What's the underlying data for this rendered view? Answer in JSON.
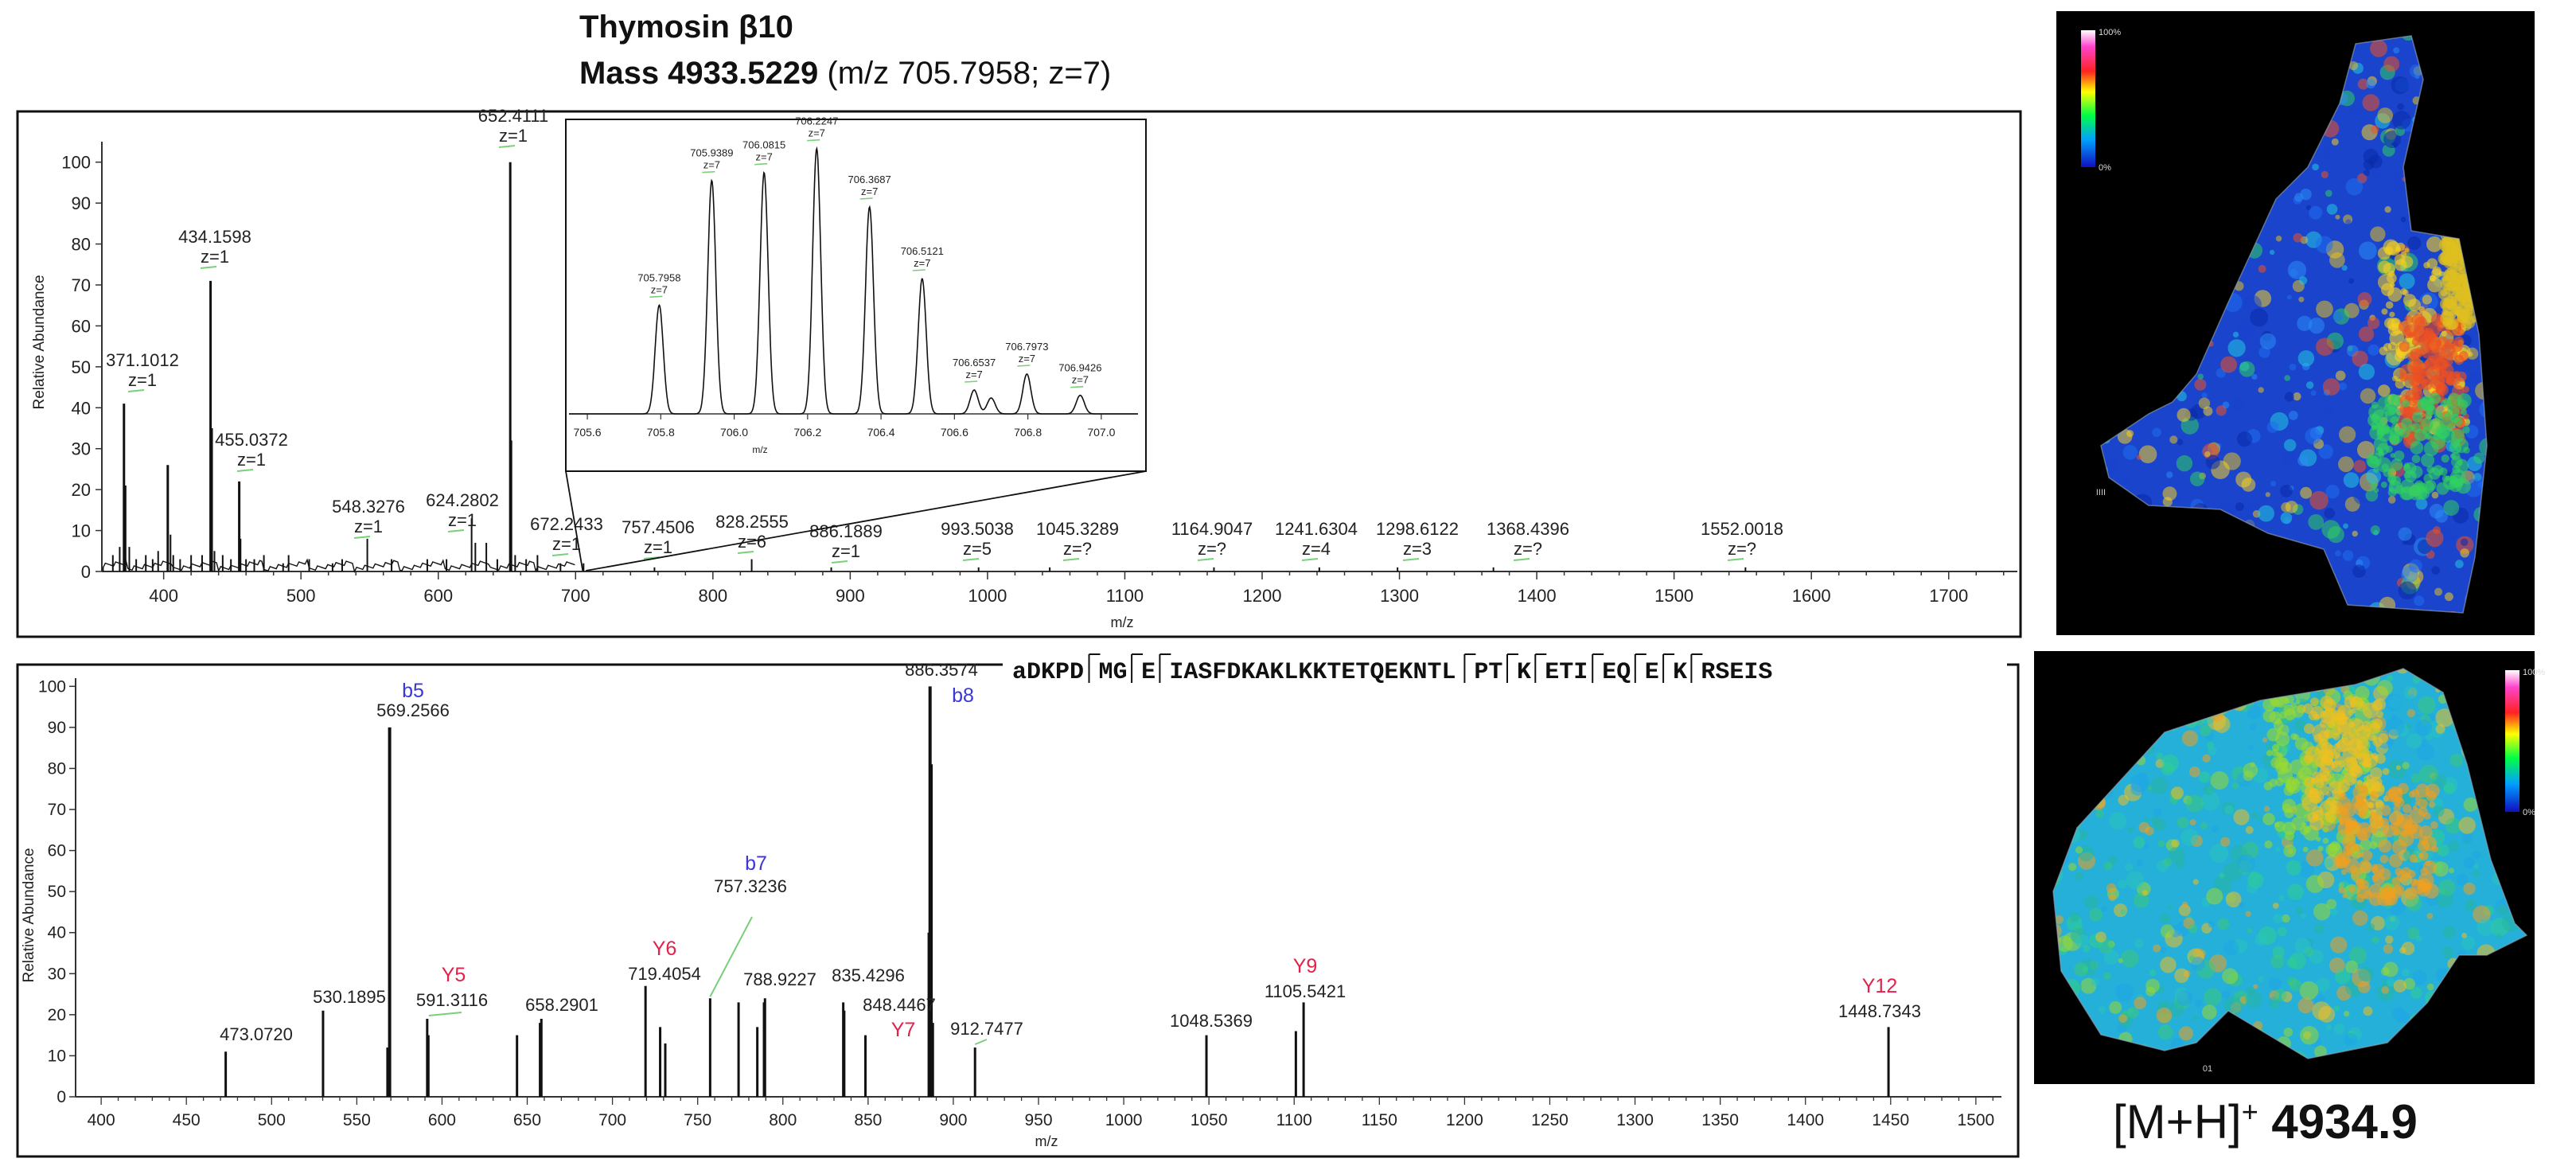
{
  "title": {
    "name": "Thymosin β10",
    "mass_label": "Mass 4933.5229",
    "mass_detail": "(m/z 705.7958; z=7)"
  },
  "sequence": [
    "aDKPD",
    "MG",
    "E",
    "IASFDKAKLKKTETQEKNTL",
    "PT",
    "K",
    "ETI",
    "EQ",
    "E",
    "K",
    "RSEIS"
  ],
  "images": {
    "top_scale_max": "100%",
    "top_scale_min": "0%",
    "top_corner": "IIII",
    "bottom_scale_max": "100%",
    "bottom_scale_min": "0%",
    "bottom_corner": "01",
    "label_main": "[M+H]",
    "label_sup": "+",
    "label_value": "4934.9"
  },
  "chart_data": [
    {
      "type": "line",
      "subtype": "mass-spectrum",
      "xlabel": "m/z",
      "ylabel": "Relative Abundance",
      "xlim": [
        355,
        1750
      ],
      "ylim": [
        0,
        105
      ],
      "xticks": [
        400,
        500,
        600,
        700,
        800,
        900,
        1000,
        1100,
        1200,
        1300,
        1400,
        1500,
        1600,
        1700
      ],
      "yticks": [
        0,
        10,
        20,
        30,
        40,
        50,
        60,
        70,
        80,
        90,
        100
      ],
      "peaks": [
        {
          "x": 363,
          "y": 4
        },
        {
          "x": 368,
          "y": 6
        },
        {
          "x": 371.1012,
          "y": 41
        },
        {
          "x": 372,
          "y": 21
        },
        {
          "x": 375,
          "y": 6
        },
        {
          "x": 380,
          "y": 3
        },
        {
          "x": 387,
          "y": 4
        },
        {
          "x": 392,
          "y": 3
        },
        {
          "x": 396,
          "y": 5
        },
        {
          "x": 403,
          "y": 26
        },
        {
          "x": 405,
          "y": 9
        },
        {
          "x": 407,
          "y": 4
        },
        {
          "x": 412,
          "y": 3
        },
        {
          "x": 420,
          "y": 4
        },
        {
          "x": 428,
          "y": 4
        },
        {
          "x": 434.1598,
          "y": 71
        },
        {
          "x": 435,
          "y": 35
        },
        {
          "x": 437,
          "y": 5
        },
        {
          "x": 443,
          "y": 4
        },
        {
          "x": 449,
          "y": 3
        },
        {
          "x": 455.0372,
          "y": 22
        },
        {
          "x": 456,
          "y": 8
        },
        {
          "x": 460,
          "y": 3
        },
        {
          "x": 466,
          "y": 3
        },
        {
          "x": 473,
          "y": 4
        },
        {
          "x": 487,
          "y": 2
        },
        {
          "x": 491,
          "y": 4
        },
        {
          "x": 506,
          "y": 3
        },
        {
          "x": 523,
          "y": 2
        },
        {
          "x": 530,
          "y": 3
        },
        {
          "x": 548.3276,
          "y": 8
        },
        {
          "x": 566,
          "y": 3
        },
        {
          "x": 592,
          "y": 3
        },
        {
          "x": 606,
          "y": 3
        },
        {
          "x": 624.2802,
          "y": 13
        },
        {
          "x": 627,
          "y": 7
        },
        {
          "x": 635,
          "y": 7
        },
        {
          "x": 643,
          "y": 3
        },
        {
          "x": 652.4111,
          "y": 100
        },
        {
          "x": 653,
          "y": 32
        },
        {
          "x": 656,
          "y": 4
        },
        {
          "x": 664,
          "y": 3
        },
        {
          "x": 672.2433,
          "y": 4
        },
        {
          "x": 689,
          "y": 2
        },
        {
          "x": 705.8,
          "y": 2
        },
        {
          "x": 757.4506,
          "y": 1
        },
        {
          "x": 828.2555,
          "y": 3
        },
        {
          "x": 886.1889,
          "y": 1
        },
        {
          "x": 993.5038,
          "y": 1
        },
        {
          "x": 1045.3289,
          "y": 1
        },
        {
          "x": 1164.9047,
          "y": 1
        },
        {
          "x": 1241.6304,
          "y": 1
        },
        {
          "x": 1298.6122,
          "y": 1
        },
        {
          "x": 1368.4396,
          "y": 1
        },
        {
          "x": 1552.0018,
          "y": 1
        }
      ],
      "labels": [
        {
          "x": 371.1012,
          "y": 41,
          "mz": "371.1012",
          "z": "z=1"
        },
        {
          "x": 434.1598,
          "y": 71,
          "mz": "434.1598",
          "z": "z=1"
        },
        {
          "x": 455.0372,
          "y": 22,
          "mz": "455.0372",
          "z": "z=1"
        },
        {
          "x": 548.3276,
          "y": 8,
          "mz": "548.3276",
          "z": "z=1"
        },
        {
          "x": 624.2802,
          "y": 13,
          "mz": "624.2802",
          "z": "z=1"
        },
        {
          "x": 652.4111,
          "y": 100,
          "mz": "652.4111",
          "z": "z=1"
        },
        {
          "x": 672.2433,
          "y": 4,
          "mz": "672.2433",
          "z": "z=1"
        },
        {
          "x": 757.4506,
          "y": 1,
          "mz": "757.4506",
          "z": "z=1"
        },
        {
          "x": 828.2555,
          "y": 3,
          "mz": "828.2555",
          "z": "z=6"
        },
        {
          "x": 886.1889,
          "y": 1,
          "mz": "886.1889",
          "z": "z=1"
        },
        {
          "x": 993.5038,
          "y": 1,
          "mz": "993.5038",
          "z": "z=5"
        },
        {
          "x": 1045.3289,
          "y": 1,
          "mz": "1045.3289",
          "z": "z=?"
        },
        {
          "x": 1164.9047,
          "y": 1,
          "mz": "1164.9047",
          "z": "z=?"
        },
        {
          "x": 1241.6304,
          "y": 1,
          "mz": "1241.6304",
          "z": "z=4"
        },
        {
          "x": 1298.6122,
          "y": 1,
          "mz": "1298.6122",
          "z": "z=3"
        },
        {
          "x": 1368.4396,
          "y": 1,
          "mz": "1368.4396",
          "z": "z=?"
        },
        {
          "x": 1552.0018,
          "y": 1,
          "mz": "1552.0018",
          "z": "z=?"
        }
      ]
    },
    {
      "type": "line",
      "subtype": "mass-spectrum-inset",
      "xlabel": "m/z",
      "xlim": [
        705.55,
        707.1
      ],
      "ylim": [
        0,
        105
      ],
      "xticks": [
        "705.6",
        "705.8",
        "706.0",
        "706.2",
        "706.4",
        "706.6",
        "706.8",
        "707.0"
      ],
      "peaks": [
        {
          "x": 705.7958,
          "y": 41,
          "mz": "705.7958",
          "z": "z=7"
        },
        {
          "x": 705.9389,
          "y": 88,
          "mz": "705.9389",
          "z": "z=7"
        },
        {
          "x": 706.0815,
          "y": 91,
          "mz": "706.0815",
          "z": "z=7"
        },
        {
          "x": 706.2247,
          "y": 100,
          "mz": "706.2247",
          "z": "z=7"
        },
        {
          "x": 706.3687,
          "y": 78,
          "mz": "706.3687",
          "z": "z=7"
        },
        {
          "x": 706.5121,
          "y": 51,
          "mz": "706.5121",
          "z": "z=7"
        },
        {
          "x": 706.6537,
          "y": 9,
          "mz": "706.6537",
          "z": "z=7"
        },
        {
          "x": 706.7,
          "y": 6
        },
        {
          "x": 706.7973,
          "y": 15,
          "mz": "706.7973",
          "z": "z=7"
        },
        {
          "x": 706.9426,
          "y": 7,
          "mz": "706.9426",
          "z": "z=7"
        }
      ]
    },
    {
      "type": "line",
      "subtype": "fragment-spectrum",
      "xlabel": "m/z",
      "ylabel": "Relative Abundance",
      "xlim": [
        385,
        1515
      ],
      "ylim": [
        0,
        102
      ],
      "xticks": [
        400,
        450,
        500,
        550,
        600,
        650,
        700,
        750,
        800,
        850,
        900,
        950,
        1000,
        1050,
        1100,
        1150,
        1200,
        1250,
        1300,
        1350,
        1400,
        1450,
        1500
      ],
      "yticks": [
        0,
        10,
        20,
        30,
        40,
        50,
        60,
        70,
        80,
        90,
        100
      ],
      "peaks": [
        {
          "x": 473.072,
          "y": 11
        },
        {
          "x": 530.1895,
          "y": 21
        },
        {
          "x": 568,
          "y": 12
        },
        {
          "x": 569.2566,
          "y": 90
        },
        {
          "x": 591.3116,
          "y": 19
        },
        {
          "x": 592,
          "y": 15
        },
        {
          "x": 644,
          "y": 15
        },
        {
          "x": 657.5,
          "y": 18
        },
        {
          "x": 658.2901,
          "y": 19
        },
        {
          "x": 719.4054,
          "y": 27
        },
        {
          "x": 728,
          "y": 17
        },
        {
          "x": 731,
          "y": 13
        },
        {
          "x": 757.3236,
          "y": 24
        },
        {
          "x": 774,
          "y": 23
        },
        {
          "x": 785,
          "y": 17
        },
        {
          "x": 788.9227,
          "y": 23
        },
        {
          "x": 789.5,
          "y": 24
        },
        {
          "x": 835.4296,
          "y": 23
        },
        {
          "x": 836,
          "y": 21
        },
        {
          "x": 848.4467,
          "y": 15
        },
        {
          "x": 885.6,
          "y": 40
        },
        {
          "x": 886.3574,
          "y": 100
        },
        {
          "x": 887,
          "y": 81
        },
        {
          "x": 888,
          "y": 18
        },
        {
          "x": 912.7477,
          "y": 12
        },
        {
          "x": 1048.5369,
          "y": 15
        },
        {
          "x": 1101,
          "y": 16
        },
        {
          "x": 1105.5421,
          "y": 23
        },
        {
          "x": 1448.7343,
          "y": 17
        }
      ],
      "labels": [
        {
          "x": 473.072,
          "y": 11,
          "text": "473.0720"
        },
        {
          "x": 530.1895,
          "y": 21,
          "text": "530.1895"
        },
        {
          "x": 569.2566,
          "y": 90,
          "text": "569.2566",
          "ion": "b5",
          "ion_color": "#3a37d6"
        },
        {
          "x": 591.3116,
          "y": 19,
          "text": "591.3116",
          "ion": "Y5",
          "ion_color": "#e3214b"
        },
        {
          "x": 658.2901,
          "y": 19,
          "text": "658.2901"
        },
        {
          "x": 719.4054,
          "y": 27,
          "text": "719.4054",
          "ion": "Y6",
          "ion_color": "#e3214b"
        },
        {
          "x": 757.3236,
          "y": 24,
          "text": "757.3236",
          "ion": "b7",
          "ion_color": "#3a37d6"
        },
        {
          "x": 788.9227,
          "y": 23,
          "text": "788.9227"
        },
        {
          "x": 835.4296,
          "y": 23,
          "text": "835.4296"
        },
        {
          "x": 848.4467,
          "y": 15,
          "text": "848.4467",
          "ion": "Y7",
          "ion_color": "#e3214b"
        },
        {
          "x": 886.3574,
          "y": 100,
          "text": "886.3574",
          "ion": "b8",
          "ion_color": "#3a37d6"
        },
        {
          "x": 912.7477,
          "y": 12,
          "text": "912.7477"
        },
        {
          "x": 1048.5369,
          "y": 15,
          "text": "1048.5369"
        },
        {
          "x": 1105.5421,
          "y": 23,
          "text": "1105.5421",
          "ion": "Y9",
          "ion_color": "#e3214b"
        },
        {
          "x": 1448.7343,
          "y": 17,
          "text": "1448.7343",
          "ion": "Y12",
          "ion_color": "#e3214b"
        }
      ]
    }
  ]
}
